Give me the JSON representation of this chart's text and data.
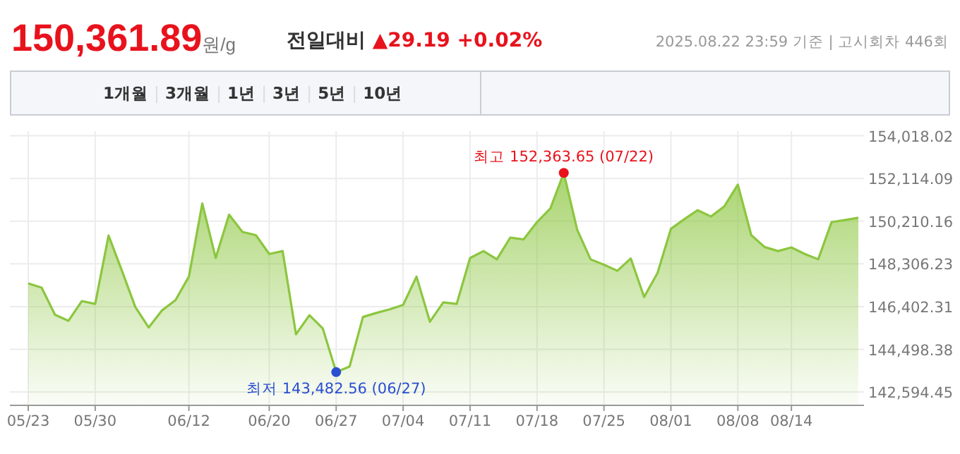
{
  "chart_data": {
    "type": "area",
    "title": "**150,361.89**원/g",
    "subtitle": "**전일대비** ▲29.19 +0.02%",
    "categories": [
      "05/23",
      null,
      null,
      null,
      null,
      "05/30",
      null,
      null,
      null,
      null,
      null,
      null,
      "06/12",
      null,
      null,
      null,
      null,
      null,
      "06/20",
      null,
      null,
      null,
      null,
      "06/27",
      null,
      null,
      null,
      null,
      "07/04",
      null,
      null,
      null,
      null,
      "07/11",
      null,
      null,
      null,
      null,
      "07/18",
      null,
      null,
      null,
      null,
      "07/25",
      null,
      null,
      null,
      null,
      "08/01",
      null,
      null,
      null,
      null,
      "08/08",
      null,
      null,
      null,
      "08/14",
      null,
      null,
      null,
      null,
      null
    ],
    "values": [
      147440,
      147250,
      146040,
      145770,
      146650,
      146520,
      149570,
      148000,
      146380,
      145470,
      146240,
      146690,
      147740,
      151000,
      148570,
      150500,
      149730,
      149590,
      148750,
      148880,
      145170,
      146020,
      145430,
      143482.56,
      143730,
      145940,
      146120,
      146280,
      146480,
      147740,
      145730,
      146590,
      146520,
      148570,
      148880,
      148510,
      149480,
      149400,
      150170,
      150780,
      152363.65,
      149830,
      148510,
      148270,
      148000,
      148550,
      146830,
      147900,
      149870,
      150300,
      150700,
      150420,
      150880,
      151840,
      149590,
      149060,
      148880,
      149040,
      148750,
      148510,
      150170,
      150260,
      150361.89
    ],
    "color": "#8cc63f",
    "ylim": [
      142000,
      154100
    ],
    "yticks": [
      {
        "value": 142594.45,
        "label": "142,594.45"
      },
      {
        "value": 144498.38,
        "label": "144,498.38"
      },
      {
        "value": 146402.31,
        "label": "146,402.31"
      },
      {
        "value": 148306.23,
        "label": "148,306.23"
      },
      {
        "value": 150210.16,
        "label": "150,210.16"
      },
      {
        "value": 152114.09,
        "label": "152,114.09"
      },
      {
        "value": 154018.02,
        "label": "154,018.02"
      }
    ],
    "grid": true,
    "annotations": [
      {
        "text": "최고 152,363.65 (07/22)",
        "y": 152363.65
      },
      {
        "text": "최저 143,482.56 (06/27)",
        "y": 143482.56
      },
      "2025.08.22 23:59 기준 | 고시회차 446회",
      "1개월",
      "3개월",
      "1년",
      "3년",
      "5년",
      "10년"
    ]
  }
}
